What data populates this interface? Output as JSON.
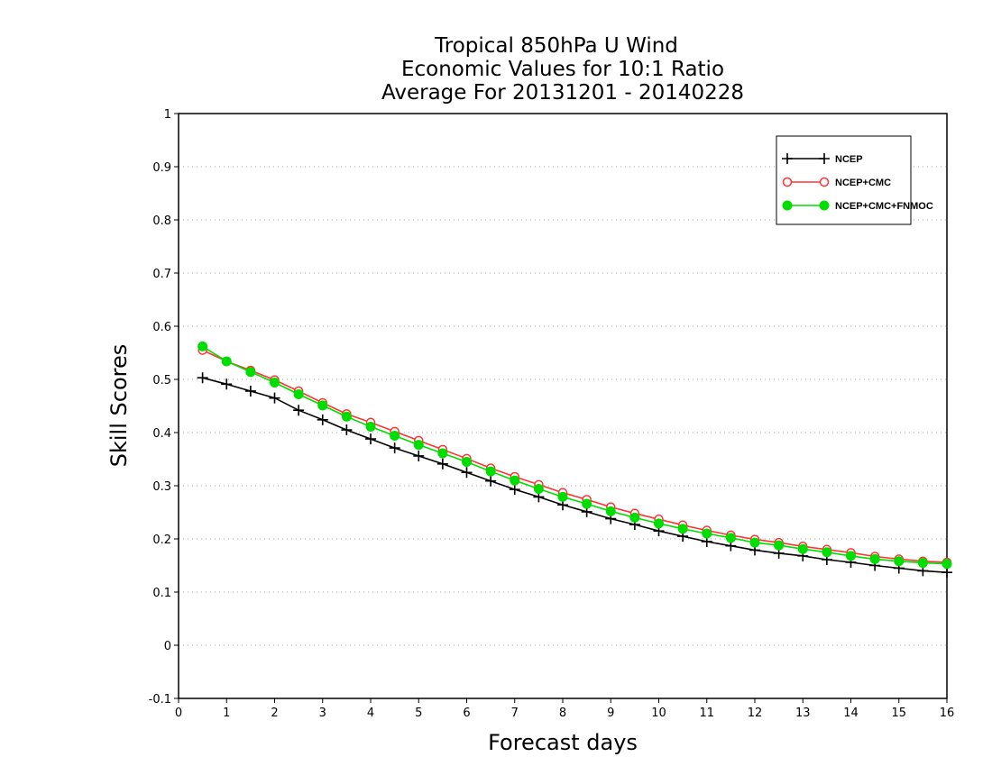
{
  "chart_data": {
    "type": "line",
    "title_lines": [
      "Tropical 850hPa U Wind",
      "Economic Values for 10:1 Ratio",
      "Average For 20131201 - 20140228"
    ],
    "xlabel": "Forecast days",
    "ylabel": "Skill Scores",
    "xlim": [
      0,
      16
    ],
    "ylim": [
      -0.1,
      1
    ],
    "x_ticks": [
      "0",
      "1",
      "2",
      "3",
      "4",
      "5",
      "6",
      "7",
      "8",
      "9",
      "10",
      "11",
      "12",
      "13",
      "14",
      "15",
      "16"
    ],
    "y_ticks": [
      "-0.1",
      "0",
      "0.1",
      "0.2",
      "0.3",
      "0.4",
      "0.5",
      "0.6",
      "0.7",
      "0.8",
      "0.9",
      "1"
    ],
    "grid": "horizontal dotted",
    "legend_position": "top-right",
    "x": [
      0.5,
      1,
      1.5,
      2,
      2.5,
      3,
      3.5,
      4,
      4.5,
      5,
      5.5,
      6,
      6.5,
      7,
      7.5,
      8,
      8.5,
      9,
      9.5,
      10,
      10.5,
      11,
      11.5,
      12,
      12.5,
      13,
      13.5,
      14,
      14.5,
      15,
      15.5,
      16
    ],
    "series": [
      {
        "name": "NCEP",
        "color": "#000000",
        "marker": "plus",
        "values": [
          0.503,
          0.491,
          0.478,
          0.465,
          0.442,
          0.424,
          0.405,
          0.388,
          0.371,
          0.356,
          0.341,
          0.325,
          0.309,
          0.293,
          0.279,
          0.264,
          0.251,
          0.238,
          0.227,
          0.215,
          0.205,
          0.195,
          0.187,
          0.179,
          0.173,
          0.168,
          0.161,
          0.156,
          0.15,
          0.145,
          0.14,
          0.137
        ]
      },
      {
        "name": "NCEP+CMC",
        "color": "#ff3333",
        "marker": "open-circle",
        "values": [
          0.555,
          0.534,
          0.517,
          0.499,
          0.478,
          0.456,
          0.435,
          0.419,
          0.402,
          0.385,
          0.368,
          0.351,
          0.333,
          0.317,
          0.302,
          0.287,
          0.274,
          0.26,
          0.248,
          0.237,
          0.226,
          0.216,
          0.207,
          0.199,
          0.193,
          0.186,
          0.18,
          0.174,
          0.167,
          0.162,
          0.158,
          0.156
        ]
      },
      {
        "name": "NCEP+CMC+FNMOC",
        "color": "#00dd00",
        "marker": "filled-circle",
        "values": [
          0.562,
          0.534,
          0.514,
          0.494,
          0.472,
          0.451,
          0.43,
          0.411,
          0.394,
          0.377,
          0.361,
          0.345,
          0.327,
          0.31,
          0.294,
          0.279,
          0.266,
          0.252,
          0.24,
          0.229,
          0.219,
          0.21,
          0.202,
          0.193,
          0.188,
          0.181,
          0.175,
          0.168,
          0.162,
          0.158,
          0.155,
          0.153
        ]
      }
    ]
  }
}
